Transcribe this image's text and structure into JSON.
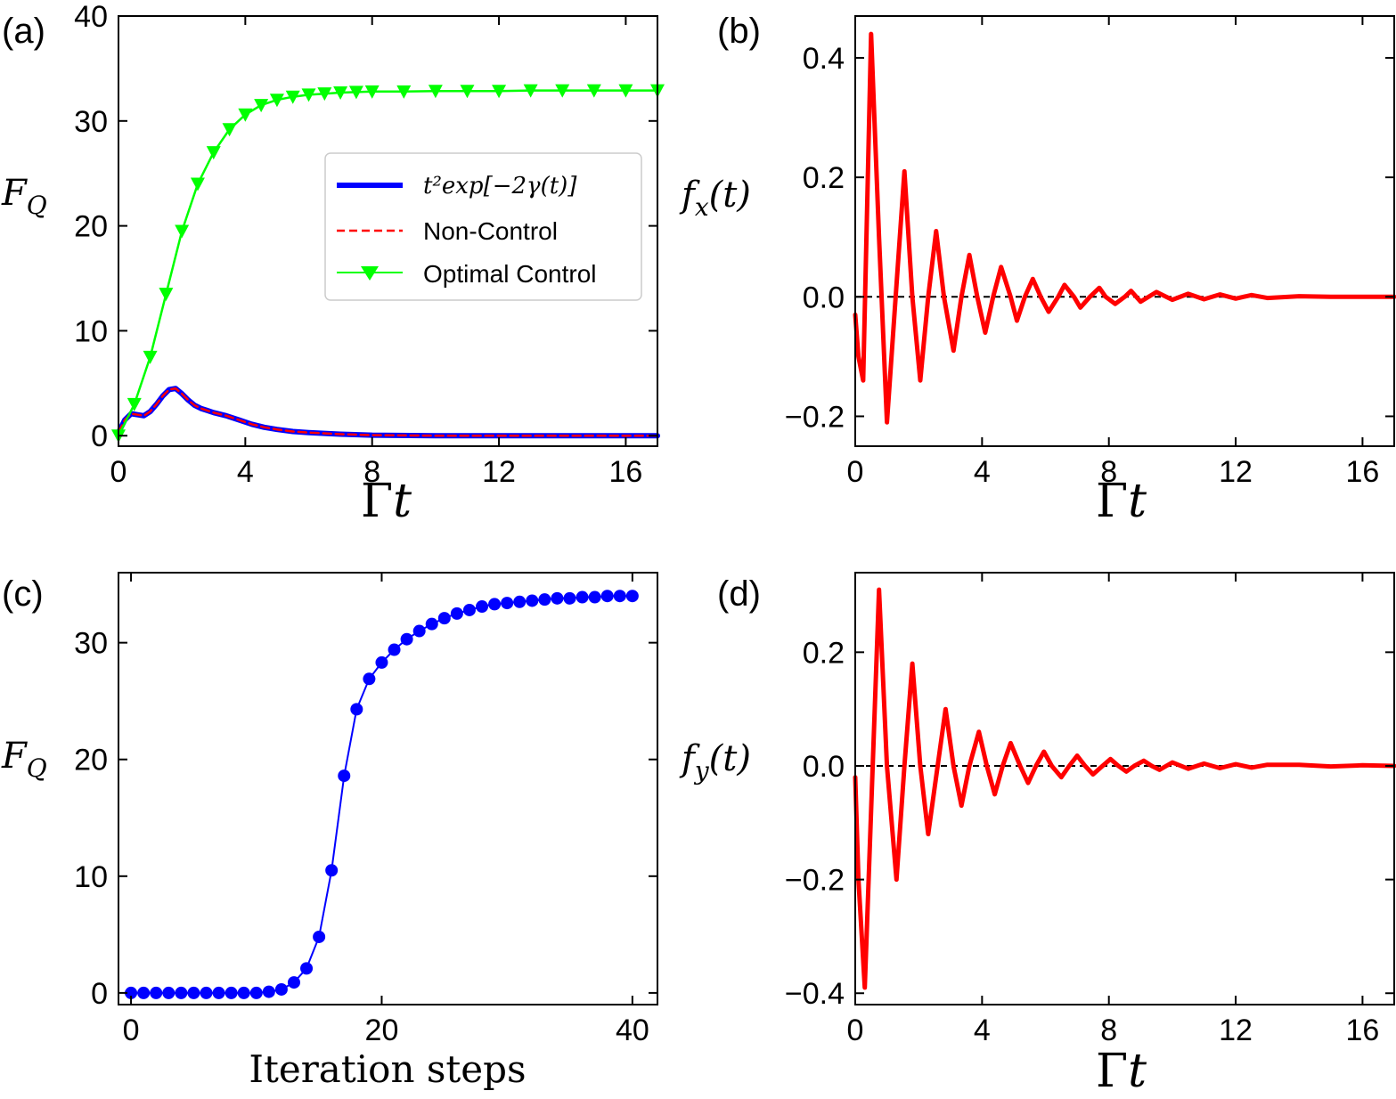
{
  "chart_data": [
    {
      "panel": "(a)",
      "type": "line",
      "xlabel_main": "Γ",
      "xlabel_var": "t",
      "ylabel_main": "F",
      "ylabel_sub": "Q",
      "xlim": [
        0,
        17
      ],
      "ylim": [
        -1,
        40
      ],
      "xticks": [
        0,
        4,
        8,
        12,
        16
      ],
      "yticks": [
        0,
        10,
        20,
        30,
        40
      ],
      "legend_position": "center-right",
      "legend_entries": [
        {
          "label": "t²exp[−2γ(t)]",
          "color": "#0000ff",
          "style": "solid-thick"
        },
        {
          "label": "Non-Control",
          "color": "#ff0000",
          "style": "dashed"
        },
        {
          "label": "Optimal Control",
          "color": "#00ff00",
          "style": "line-triangle-down"
        }
      ],
      "series": [
        {
          "name": "t²exp[−2γ(t)]",
          "color": "#0000ff",
          "x": [
            0,
            0.2,
            0.4,
            0.6,
            0.8,
            1.0,
            1.2,
            1.4,
            1.6,
            1.8,
            2.0,
            2.2,
            2.4,
            2.6,
            2.8,
            3.0,
            3.4,
            3.8,
            4.2,
            4.6,
            5.0,
            5.5,
            6.0,
            7.0,
            8.0,
            10.0,
            12.0,
            14.0,
            16.0,
            17.0
          ],
          "y": [
            0.3,
            1.5,
            2.1,
            2.0,
            1.9,
            2.3,
            3.0,
            3.8,
            4.4,
            4.5,
            4.0,
            3.4,
            2.9,
            2.6,
            2.4,
            2.2,
            1.9,
            1.5,
            1.1,
            0.8,
            0.6,
            0.4,
            0.3,
            0.15,
            0.05,
            0,
            0,
            0,
            0,
            0
          ]
        },
        {
          "name": "Non-Control",
          "color": "#ff0000",
          "x": [
            0,
            0.2,
            0.4,
            0.6,
            0.8,
            1.0,
            1.2,
            1.4,
            1.6,
            1.8,
            2.0,
            2.2,
            2.4,
            2.6,
            2.8,
            3.0,
            3.4,
            3.8,
            4.2,
            4.6,
            5.0,
            5.5,
            6.0,
            7.0,
            8.0,
            10.0,
            12.0,
            14.0,
            16.0,
            17.0
          ],
          "y": [
            0.3,
            1.5,
            2.1,
            2.0,
            1.9,
            2.3,
            3.0,
            3.8,
            4.4,
            4.5,
            4.0,
            3.4,
            2.9,
            2.6,
            2.4,
            2.2,
            1.9,
            1.5,
            1.1,
            0.8,
            0.6,
            0.4,
            0.3,
            0.15,
            0.05,
            0,
            0,
            0,
            0,
            0
          ]
        },
        {
          "name": "Optimal Control",
          "color": "#00ff00",
          "marker": "triangle-down",
          "x": [
            0,
            0.5,
            1.0,
            1.5,
            2.0,
            2.5,
            3.0,
            3.5,
            4.0,
            4.5,
            5.0,
            5.5,
            6.0,
            6.5,
            7.0,
            7.5,
            8.0,
            9.0,
            10.0,
            11.0,
            12.0,
            13.0,
            14.0,
            15.0,
            16.0,
            17.0
          ],
          "y": [
            0,
            3.0,
            7.5,
            13.5,
            19.5,
            24.0,
            27.0,
            29.2,
            30.6,
            31.5,
            32.0,
            32.3,
            32.5,
            32.6,
            32.7,
            32.75,
            32.8,
            32.8,
            32.85,
            32.85,
            32.85,
            32.9,
            32.9,
            32.9,
            32.9,
            32.9
          ]
        }
      ]
    },
    {
      "panel": "(b)",
      "type": "line",
      "xlabel_main": "Γ",
      "xlabel_var": "t",
      "ylabel_main": "f",
      "ylabel_sub": "x",
      "ylabel_arg": "(t)",
      "xlim": [
        0,
        17
      ],
      "ylim": [
        -0.25,
        0.47
      ],
      "xticks": [
        0,
        4,
        8,
        12,
        16
      ],
      "yticks": [
        -0.2,
        0.0,
        0.2,
        0.4
      ],
      "ytick_labels": [
        "−0.2",
        "0.0",
        "0.2",
        "0.4"
      ],
      "zero_line": true,
      "series": [
        {
          "color": "#ff0000",
          "x": [
            0,
            0.1,
            0.25,
            0.5,
            0.75,
            1.0,
            1.3,
            1.55,
            1.8,
            2.05,
            2.3,
            2.55,
            2.8,
            3.1,
            3.35,
            3.6,
            3.85,
            4.1,
            4.35,
            4.6,
            4.9,
            5.1,
            5.35,
            5.6,
            5.85,
            6.1,
            6.4,
            6.6,
            6.9,
            7.1,
            7.4,
            7.7,
            7.9,
            8.2,
            8.5,
            8.7,
            9.0,
            9.5,
            10.0,
            10.5,
            11.0,
            11.5,
            12.0,
            12.5,
            13.0,
            14.0,
            15.0,
            16.0,
            17.0
          ],
          "y": [
            -0.03,
            -0.1,
            -0.14,
            0.44,
            0.1,
            -0.21,
            0.02,
            0.21,
            0.0,
            -0.14,
            0.0,
            0.11,
            0.0,
            -0.09,
            0.0,
            0.07,
            0.0,
            -0.06,
            0.0,
            0.05,
            0.0,
            -0.04,
            0.0,
            0.03,
            0.0,
            -0.025,
            0.0,
            0.02,
            0.0,
            -0.018,
            0.0,
            0.015,
            0.0,
            -0.012,
            0.0,
            0.01,
            -0.008,
            0.008,
            -0.005,
            0.005,
            -0.004,
            0.004,
            -0.003,
            0.003,
            -0.002,
            0.001,
            0.0,
            0.0,
            0.0
          ]
        }
      ]
    },
    {
      "panel": "(c)",
      "type": "line",
      "xlabel": "Iteration steps",
      "ylabel_main": "F",
      "ylabel_sub": "Q",
      "xlim": [
        -1,
        42
      ],
      "ylim": [
        -1,
        36
      ],
      "xticks": [
        0,
        20,
        40
      ],
      "yticks": [
        0,
        10,
        20,
        30
      ],
      "series": [
        {
          "color": "#0000ff",
          "marker": "circle",
          "x": [
            0,
            1,
            2,
            3,
            4,
            5,
            6,
            7,
            8,
            9,
            10,
            11,
            12,
            13,
            14,
            15,
            16,
            17,
            18,
            19,
            20,
            21,
            22,
            23,
            24,
            25,
            26,
            27,
            28,
            29,
            30,
            31,
            32,
            33,
            34,
            35,
            36,
            37,
            38,
            39,
            40
          ],
          "y": [
            0,
            0,
            0,
            0,
            0,
            0,
            0,
            0,
            0,
            0,
            0,
            0.1,
            0.3,
            0.9,
            2.1,
            4.8,
            10.5,
            18.6,
            24.3,
            26.9,
            28.3,
            29.4,
            30.3,
            31.0,
            31.6,
            32.1,
            32.5,
            32.8,
            33.1,
            33.3,
            33.4,
            33.5,
            33.6,
            33.7,
            33.8,
            33.8,
            33.9,
            33.9,
            34.0,
            34.0,
            34.0
          ]
        }
      ]
    },
    {
      "panel": "(d)",
      "type": "line",
      "xlabel_main": "Γ",
      "xlabel_var": "t",
      "ylabel_main": "f",
      "ylabel_sub": "y",
      "ylabel_arg": "(t)",
      "xlim": [
        0,
        17
      ],
      "ylim": [
        -0.42,
        0.34
      ],
      "xticks": [
        0,
        4,
        8,
        12,
        16
      ],
      "yticks": [
        -0.4,
        -0.2,
        0.0,
        0.2
      ],
      "ytick_labels": [
        "−0.4",
        "−0.2",
        "0.0",
        "0.2"
      ],
      "zero_line": true,
      "series": [
        {
          "color": "#ff0000",
          "x": [
            0,
            0.1,
            0.3,
            0.55,
            0.75,
            1.0,
            1.3,
            1.55,
            1.8,
            2.05,
            2.3,
            2.6,
            2.85,
            3.1,
            3.35,
            3.6,
            3.9,
            4.15,
            4.4,
            4.65,
            4.9,
            5.2,
            5.45,
            5.7,
            5.95,
            6.2,
            6.5,
            6.75,
            7.0,
            7.25,
            7.5,
            7.8,
            8.05,
            8.3,
            8.55,
            8.8,
            9.1,
            9.35,
            9.6,
            10.0,
            10.5,
            11.0,
            11.5,
            12.0,
            12.5,
            13.0,
            14.0,
            15.0,
            16.0,
            17.0
          ],
          "y": [
            -0.02,
            -0.2,
            -0.39,
            0.0,
            0.31,
            0.0,
            -0.2,
            0.0,
            0.18,
            0.0,
            -0.12,
            0.0,
            0.1,
            0.0,
            -0.07,
            0.0,
            0.06,
            0.0,
            -0.05,
            0.0,
            0.04,
            0.0,
            -0.03,
            0.0,
            0.025,
            0.0,
            -0.02,
            0.0,
            0.018,
            0.0,
            -0.015,
            0.0,
            0.012,
            0.0,
            -0.01,
            0.0,
            0.009,
            0.0,
            -0.007,
            0.006,
            -0.005,
            0.004,
            -0.004,
            0.003,
            -0.003,
            0.002,
            0.002,
            -0.001,
            0.001,
            0.0
          ]
        }
      ]
    }
  ]
}
